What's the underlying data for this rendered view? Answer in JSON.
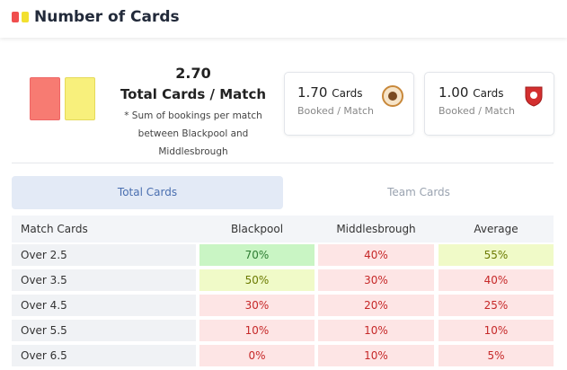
{
  "header": {
    "title": "Number of Cards"
  },
  "summary": {
    "value": "2.70",
    "label": "Total Cards / Match",
    "note": "* Sum of bookings per match between Blackpool and Middlesbrough"
  },
  "teams": [
    {
      "value": "1.70",
      "unit": "Cards",
      "label": "Booked / Match"
    },
    {
      "value": "1.00",
      "unit": "Cards",
      "label": "Booked / Match"
    }
  ],
  "tabs": [
    "Total Cards",
    "Team Cards"
  ],
  "table": {
    "columns": [
      "Match Cards",
      "Blackpool",
      "Middlesbrough",
      "Average"
    ],
    "rows": [
      [
        "Over 2.5",
        "70%",
        "40%",
        "55%"
      ],
      [
        "Over 3.5",
        "50%",
        "30%",
        "40%"
      ],
      [
        "Over 4.5",
        "30%",
        "20%",
        "25%"
      ],
      [
        "Over 5.5",
        "10%",
        "10%",
        "10%"
      ],
      [
        "Over 6.5",
        "0%",
        "10%",
        "5%"
      ]
    ]
  }
}
